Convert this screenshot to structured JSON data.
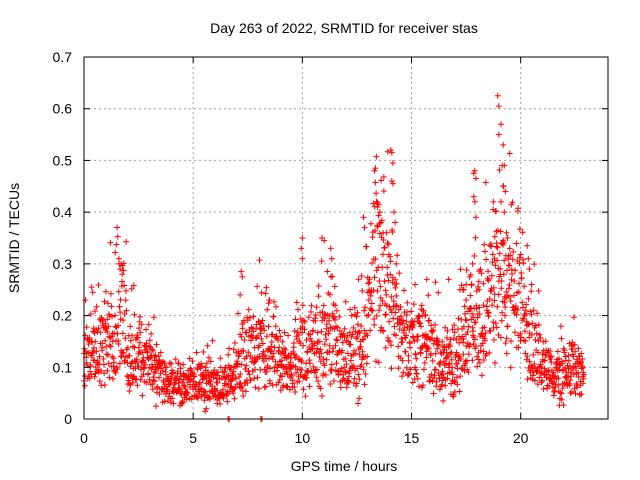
{
  "chart_data": {
    "type": "scatter",
    "title": "Day 263 of 2022, SRMTID for receiver stas",
    "xlabel": "GPS time / hours",
    "ylabel": "SRMTID / TECUs",
    "xlim": [
      0,
      24
    ],
    "ylim": [
      0,
      0.7
    ],
    "x_ticks": [
      0,
      5,
      10,
      15,
      20
    ],
    "x_tick_labels": [
      "0",
      "5",
      "10",
      "15",
      "20"
    ],
    "y_ticks": [
      0,
      0.1,
      0.2,
      0.3,
      0.4,
      0.5,
      0.6,
      0.7
    ],
    "y_tick_labels": [
      "0",
      "0.1",
      "0.2",
      "0.3",
      "0.4",
      "0.5",
      "0.6",
      "0.7"
    ],
    "grid": true,
    "marker": "plus",
    "color": "#ff0000",
    "envelope": [
      [
        0.0,
        0.11
      ],
      [
        0.5,
        0.13
      ],
      [
        1.0,
        0.14
      ],
      [
        1.5,
        0.16
      ],
      [
        1.8,
        0.22
      ],
      [
        2.0,
        0.12
      ],
      [
        2.5,
        0.11
      ],
      [
        3.0,
        0.1
      ],
      [
        3.5,
        0.08
      ],
      [
        4.0,
        0.07
      ],
      [
        4.5,
        0.06
      ],
      [
        5.0,
        0.07
      ],
      [
        5.5,
        0.07
      ],
      [
        6.0,
        0.065
      ],
      [
        6.5,
        0.07
      ],
      [
        7.0,
        0.09
      ],
      [
        7.5,
        0.12
      ],
      [
        8.0,
        0.14
      ],
      [
        8.5,
        0.16
      ],
      [
        9.0,
        0.1
      ],
      [
        9.5,
        0.1
      ],
      [
        10.0,
        0.13
      ],
      [
        10.5,
        0.14
      ],
      [
        11.0,
        0.15
      ],
      [
        11.5,
        0.14
      ],
      [
        12.0,
        0.13
      ],
      [
        12.5,
        0.12
      ],
      [
        13.0,
        0.2
      ],
      [
        13.5,
        0.28
      ],
      [
        14.0,
        0.24
      ],
      [
        14.5,
        0.15
      ],
      [
        15.0,
        0.13
      ],
      [
        15.5,
        0.15
      ],
      [
        16.0,
        0.12
      ],
      [
        16.5,
        0.1
      ],
      [
        17.0,
        0.1
      ],
      [
        17.5,
        0.16
      ],
      [
        18.0,
        0.18
      ],
      [
        18.5,
        0.22
      ],
      [
        19.0,
        0.28
      ],
      [
        19.5,
        0.24
      ],
      [
        20.0,
        0.22
      ],
      [
        20.5,
        0.15
      ],
      [
        21.0,
        0.1
      ],
      [
        21.5,
        0.08
      ],
      [
        22.0,
        0.09
      ],
      [
        22.5,
        0.09
      ],
      [
        22.9,
        0.08
      ]
    ],
    "peaks": [
      [
        0.35,
        0.255
      ],
      [
        0.4,
        0.245
      ],
      [
        1.6,
        0.31
      ],
      [
        1.7,
        0.3
      ],
      [
        1.75,
        0.28
      ],
      [
        1.65,
        0.29
      ],
      [
        7.2,
        0.285
      ],
      [
        7.25,
        0.275
      ],
      [
        7.15,
        0.24
      ],
      [
        8.5,
        0.23
      ],
      [
        10.0,
        0.35
      ],
      [
        9.95,
        0.33
      ],
      [
        10.0,
        0.31
      ],
      [
        10.9,
        0.35
      ],
      [
        11.0,
        0.345
      ],
      [
        11.3,
        0.33
      ],
      [
        11.35,
        0.31
      ],
      [
        12.8,
        0.39
      ],
      [
        12.85,
        0.37
      ],
      [
        13.3,
        0.48
      ],
      [
        13.35,
        0.485
      ],
      [
        13.4,
        0.42
      ],
      [
        13.45,
        0.41
      ],
      [
        13.5,
        0.415
      ],
      [
        13.55,
        0.4
      ],
      [
        13.6,
        0.38
      ],
      [
        13.7,
        0.36
      ],
      [
        13.9,
        0.34
      ],
      [
        14.05,
        0.52
      ],
      [
        14.1,
        0.515
      ],
      [
        14.15,
        0.495
      ],
      [
        14.1,
        0.46
      ],
      [
        14.15,
        0.455
      ],
      [
        14.2,
        0.4
      ],
      [
        14.25,
        0.38
      ],
      [
        14.3,
        0.3
      ],
      [
        15.7,
        0.27
      ],
      [
        16.7,
        0.27
      ],
      [
        17.4,
        0.25
      ],
      [
        17.5,
        0.26
      ],
      [
        17.5,
        0.23
      ],
      [
        17.85,
        0.475
      ],
      [
        17.9,
        0.48
      ],
      [
        17.95,
        0.465
      ],
      [
        17.85,
        0.43
      ],
      [
        17.9,
        0.42
      ],
      [
        17.95,
        0.39
      ],
      [
        17.8,
        0.3
      ],
      [
        18.1,
        0.25
      ],
      [
        18.3,
        0.22
      ],
      [
        18.75,
        0.42
      ],
      [
        18.8,
        0.31
      ],
      [
        18.9,
        0.34
      ],
      [
        18.95,
        0.625
      ],
      [
        19.0,
        0.605
      ],
      [
        19.0,
        0.55
      ],
      [
        19.1,
        0.57
      ],
      [
        19.2,
        0.53
      ],
      [
        19.15,
        0.49
      ],
      [
        19.25,
        0.49
      ],
      [
        19.2,
        0.45
      ],
      [
        19.3,
        0.44
      ],
      [
        19.1,
        0.42
      ],
      [
        19.25,
        0.4
      ],
      [
        19.35,
        0.36
      ],
      [
        19.4,
        0.35
      ],
      [
        19.5,
        0.33
      ],
      [
        20.3,
        0.335
      ],
      [
        20.35,
        0.31
      ],
      [
        20.4,
        0.29
      ],
      [
        20.5,
        0.26
      ]
    ],
    "lows": [
      [
        6.6,
        0.0
      ],
      [
        6.65,
        0.0
      ],
      [
        8.1,
        0.0
      ],
      [
        8.15,
        0.0
      ],
      [
        5.55,
        0.015
      ],
      [
        5.6,
        0.02
      ],
      [
        12.55,
        0.03
      ],
      [
        12.6,
        0.04
      ],
      [
        3.3,
        0.025
      ],
      [
        4.1,
        0.03
      ],
      [
        6.1,
        0.03
      ],
      [
        16.45,
        0.035
      ]
    ],
    "noise_seed": 263
  }
}
